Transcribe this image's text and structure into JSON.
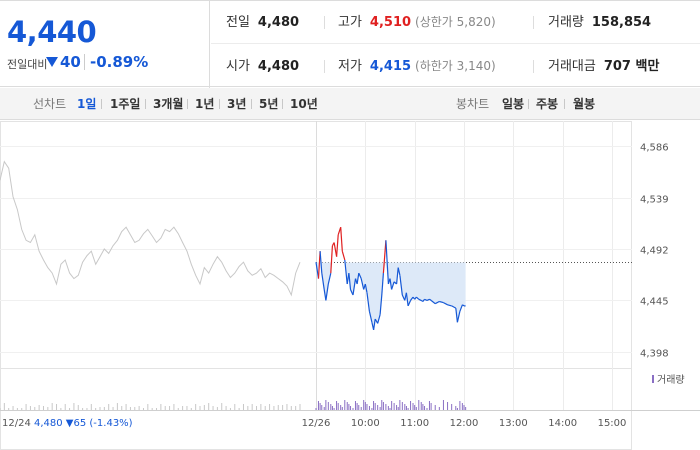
{
  "quote": {
    "price": "4,440",
    "prev_label": "전일대비",
    "change": "40",
    "change_pct": "-0.89%",
    "direction": "down"
  },
  "stats": {
    "prev_close": {
      "label": "전일",
      "value": "4,480"
    },
    "high": {
      "label": "고가",
      "value": "4,510",
      "sub": "(상한가 5,820)"
    },
    "volume": {
      "label": "거래량",
      "value": "158,854"
    },
    "open": {
      "label": "시가",
      "value": "4,480"
    },
    "low": {
      "label": "저가",
      "value": "4,415",
      "sub": "(하한가 3,140)"
    },
    "amount": {
      "label": "거래대금",
      "value": "707 백만"
    }
  },
  "tabs": {
    "line_label": "선차트",
    "line_periods": [
      "1일",
      "1주일",
      "3개월",
      "1년",
      "3년",
      "5년",
      "10년"
    ],
    "active": "1일",
    "candle_label": "봉차트",
    "candle_periods": [
      "일봉",
      "주봉",
      "월봉"
    ]
  },
  "colors": {
    "up": "#e02020",
    "down": "#1558d6",
    "prior": "#c8c8c8",
    "fill": "#dde9f8"
  },
  "chart_data": {
    "type": "line",
    "ylim": [
      4385,
      4600
    ],
    "y_ticks": [
      "4,586",
      "4,539",
      "4,492",
      "4,445",
      "4,398"
    ],
    "y_tick_values": [
      4586,
      4539,
      4492,
      4445,
      4398
    ],
    "baseline": 4480,
    "x_ticks": [
      "12/26",
      "10:00",
      "11:00",
      "12:00",
      "13:00",
      "14:00",
      "15:00"
    ],
    "x_tick_minutes": [
      0,
      60,
      120,
      180,
      240,
      300,
      360
    ],
    "prior_label": "12/24",
    "prior_summary": "4,480 ▼65 (-1.43%)",
    "volume_legend": "거래량",
    "prior_series": {
      "name": "12/24",
      "values": [
        4555,
        4572,
        4566,
        4540,
        4528,
        4510,
        4500,
        4498,
        4505,
        4490,
        4482,
        4475,
        4470,
        4460,
        4478,
        4482,
        4470,
        4465,
        4468,
        4480,
        4486,
        4490,
        4478,
        4485,
        4492,
        4488,
        4495,
        4500,
        4508,
        4512,
        4505,
        4498,
        4500,
        4506,
        4510,
        4504,
        4498,
        4502,
        4510,
        4508,
        4512,
        4506,
        4498,
        4490,
        4478,
        4468,
        4460,
        4475,
        4470,
        4478,
        4485,
        4480,
        4472,
        4466,
        4470,
        4476,
        4480,
        4472,
        4468,
        4470,
        4474,
        4466,
        4470,
        4468,
        4465,
        4462,
        4458,
        4450,
        4470,
        4480
      ]
    },
    "today_series": {
      "name": "12/26",
      "times": [
        0,
        3,
        5,
        7,
        10,
        12,
        15,
        18,
        20,
        22,
        25,
        27,
        30,
        32,
        35,
        38,
        40,
        42,
        45,
        48,
        50,
        52,
        55,
        58,
        60,
        62,
        65,
        68,
        70,
        72,
        75,
        78,
        80,
        82,
        85,
        88,
        90,
        92,
        95,
        98,
        100,
        102,
        105,
        108,
        110,
        112,
        115,
        118,
        120,
        122,
        125,
        128,
        130,
        132,
        135,
        138,
        140,
        145,
        150,
        155,
        160,
        165,
        170,
        172,
        175,
        178,
        180,
        182
      ],
      "values": [
        4480,
        4465,
        4490,
        4470,
        4455,
        4445,
        4460,
        4470,
        4495,
        4498,
        4485,
        4505,
        4512,
        4490,
        4482,
        4460,
        4470,
        4455,
        4450,
        4465,
        4460,
        4470,
        4465,
        4455,
        4460,
        4452,
        4435,
        4425,
        4418,
        4428,
        4424,
        4432,
        4450,
        4470,
        4500,
        4460,
        4465,
        4455,
        4462,
        4460,
        4475,
        4468,
        4450,
        4445,
        4452,
        4440,
        4445,
        4448,
        4446,
        4448,
        4446,
        4445,
        4444,
        4446,
        4445,
        4446,
        4445,
        4442,
        4444,
        4443,
        4441,
        4440,
        4438,
        4425,
        4435,
        4441,
        4440,
        4440
      ],
      "colors": [
        "down",
        "down",
        "up",
        "down",
        "down",
        "down",
        "down",
        "down",
        "up",
        "up",
        "up",
        "up",
        "up",
        "up",
        "up",
        "down",
        "down",
        "down",
        "down",
        "down",
        "down",
        "down",
        "down",
        "down",
        "down",
        "down",
        "down",
        "down",
        "down",
        "down",
        "down",
        "down",
        "down",
        "down",
        "up",
        "down",
        "down",
        "down",
        "down",
        "down",
        "down",
        "down",
        "down",
        "down",
        "down",
        "down",
        "down",
        "down",
        "down",
        "down",
        "down",
        "down",
        "down",
        "down",
        "down",
        "down",
        "down",
        "down",
        "down",
        "down",
        "down",
        "down",
        "down",
        "down",
        "down",
        "down",
        "down",
        "down"
      ]
    }
  }
}
